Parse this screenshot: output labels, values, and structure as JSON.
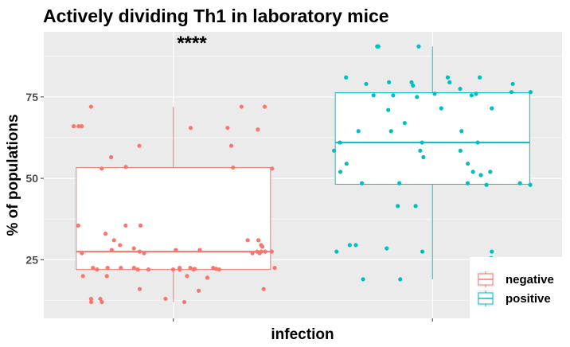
{
  "chart_data": {
    "type": "box",
    "title": "Actively dividing Th1 in laboratory mice",
    "xlabel": "infection",
    "ylabel": "% of populations",
    "ylim": [
      7,
      95
    ],
    "yticks": [
      25,
      50,
      75
    ],
    "ytick_labels": [
      "25",
      "50",
      "75"
    ],
    "grid": true,
    "legend_position": "bottom-right",
    "significance_label": "****",
    "groups": [
      {
        "name": "negative",
        "color": "#F8766D",
        "box": {
          "min": 12,
          "q1": 22,
          "median": 27.5,
          "q3": 53.3,
          "max": 72
        },
        "points": [
          72,
          72,
          72,
          66,
          66,
          66,
          65.5,
          65.5,
          65,
          60,
          60,
          56.5,
          53.5,
          53.3,
          53,
          53,
          35.5,
          35.5,
          35.5,
          33,
          31,
          31,
          31,
          29.5,
          29.5,
          29,
          28.5,
          28,
          28,
          28,
          27.5,
          27.5,
          27.5,
          27.5,
          27.5,
          27,
          27,
          27,
          27,
          22.5,
          22.5,
          22.5,
          22.5,
          22.5,
          22.5,
          22.5,
          22.5,
          22.2,
          22.2,
          22,
          22,
          22,
          22,
          22,
          22,
          22,
          20,
          20,
          20,
          19.5,
          16,
          16,
          15.5,
          13,
          13,
          13,
          12,
          12,
          12
        ]
      },
      {
        "name": "positive",
        "color": "#00BFC4",
        "box": {
          "min": 19,
          "q1": 48.2,
          "median": 61,
          "q3": 76.3,
          "max": 90.5
        },
        "points": [
          90.5,
          90.5,
          90.5,
          81,
          81,
          81,
          79.5,
          79.5,
          79.5,
          79,
          79,
          78.5,
          77.5,
          76.5,
          76.5,
          76,
          76,
          75.5,
          75.5,
          75.5,
          75,
          71.5,
          71.5,
          71,
          67,
          64.5,
          64.5,
          64.5,
          61,
          61,
          61,
          58.5,
          58.5,
          58.5,
          56.5,
          54.5,
          54.5,
          52,
          52,
          52,
          51,
          48.5,
          48.5,
          48.5,
          48.5,
          48,
          48,
          41.5,
          41.5,
          29.5,
          29.5,
          28.5,
          27.5,
          27.5,
          27.5,
          25.5,
          22.5,
          19,
          19,
          19
        ]
      }
    ]
  }
}
